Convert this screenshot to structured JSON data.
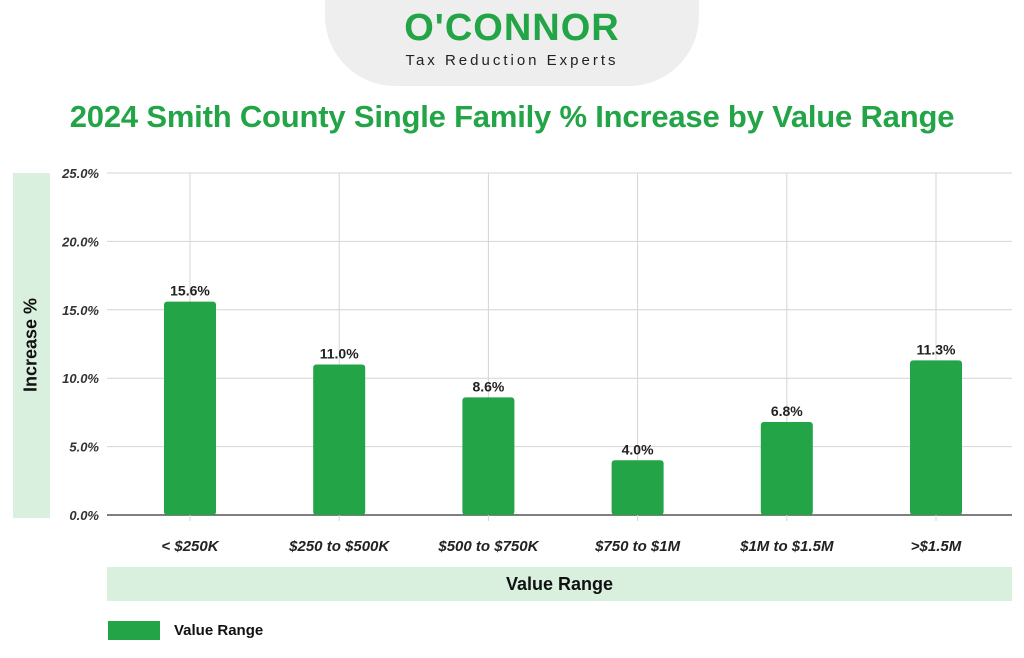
{
  "logo": {
    "name": "O'CONNOR",
    "tagline": "Tax Reduction Experts"
  },
  "colors": {
    "brand_green": "#22a447",
    "band_green": "#d9f0de"
  },
  "chart_data": {
    "type": "bar",
    "title": "2024 Smith County Single Family % Increase by Value Range",
    "xlabel": "Value Range",
    "ylabel": "Increase %",
    "categories": [
      "< $250K",
      "$250 to $500K",
      "$500 to $750K",
      "$750 to $1M",
      "$1M to $1.5M",
      ">$1.5M"
    ],
    "series": [
      {
        "name": "Value Range",
        "values": [
          15.6,
          11.0,
          8.6,
          4.0,
          6.8,
          11.3
        ],
        "data_labels": [
          "15.6%",
          "11.0%",
          "8.6%",
          "4.0%",
          "6.8%",
          "11.3%"
        ]
      }
    ],
    "ylim": [
      0,
      25
    ],
    "yticks": [
      0,
      5,
      10,
      15,
      20,
      25
    ],
    "ytick_labels": [
      "0.0%",
      "5.0%",
      "10.0%",
      "15.0%",
      "20.0%",
      "25.0%"
    ],
    "grid": true,
    "legend_position": "bottom-left"
  }
}
